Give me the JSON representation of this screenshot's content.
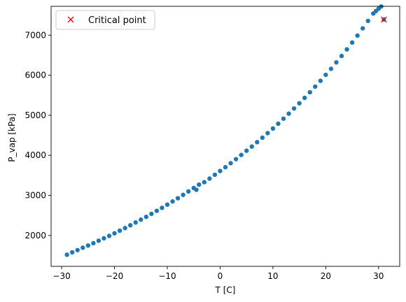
{
  "chart_data": {
    "type": "scatter",
    "title": "",
    "xlabel": "T [C]",
    "ylabel": "P_vap [kPa]",
    "xlim": [
      -32,
      34
    ],
    "ylim": [
      1230,
      7720
    ],
    "xticks": [
      -30,
      -20,
      -10,
      0,
      10,
      20,
      30
    ],
    "yticks": [
      2000,
      3000,
      4000,
      5000,
      6000,
      7000
    ],
    "xtick_labels": [
      "−30",
      "−20",
      "−10",
      "0",
      "10",
      "20",
      "30"
    ],
    "ytick_labels": [
      "2000",
      "3000",
      "4000",
      "5000",
      "6000",
      "7000"
    ],
    "grid": false,
    "legend_position": "top-left",
    "series": [
      {
        "marker": "circle",
        "color": "#1f77b4",
        "x": [
          -29,
          -28,
          -27,
          -26,
          -25,
          -24,
          -23,
          -22,
          -21,
          -20,
          -19,
          -18,
          -17,
          -16,
          -15,
          -14,
          -13,
          -12,
          -11,
          -10,
          -9,
          -8,
          -7,
          -6,
          -5,
          -4.5,
          -4,
          -3,
          -2,
          -1,
          0,
          1,
          2,
          3,
          4,
          5,
          6,
          7,
          8,
          9,
          10,
          11,
          12,
          13,
          14,
          15,
          16,
          17,
          18,
          19,
          20,
          21,
          22,
          23,
          24,
          25,
          26,
          27,
          28,
          29,
          29.5,
          30,
          30.5,
          31
        ],
        "y": [
          1520,
          1580,
          1635,
          1695,
          1750,
          1808,
          1870,
          1930,
          1990,
          2055,
          2120,
          2185,
          2255,
          2325,
          2395,
          2465,
          2540,
          2615,
          2690,
          2770,
          2850,
          2930,
          3015,
          3100,
          3185,
          3140,
          3270,
          3330,
          3420,
          3515,
          3610,
          3705,
          3805,
          3905,
          4010,
          4115,
          4220,
          4330,
          4440,
          4555,
          4670,
          4790,
          4915,
          5040,
          5170,
          5300,
          5435,
          5575,
          5715,
          5860,
          6010,
          6160,
          6320,
          6480,
          6645,
          6815,
          6990,
          7170,
          7355,
          7540,
          7600,
          7660,
          7715,
          7390
        ]
      },
      {
        "name": "Critical point",
        "marker": "x",
        "color": "#ff0000",
        "x": [
          31
        ],
        "y": [
          7390
        ]
      }
    ]
  }
}
